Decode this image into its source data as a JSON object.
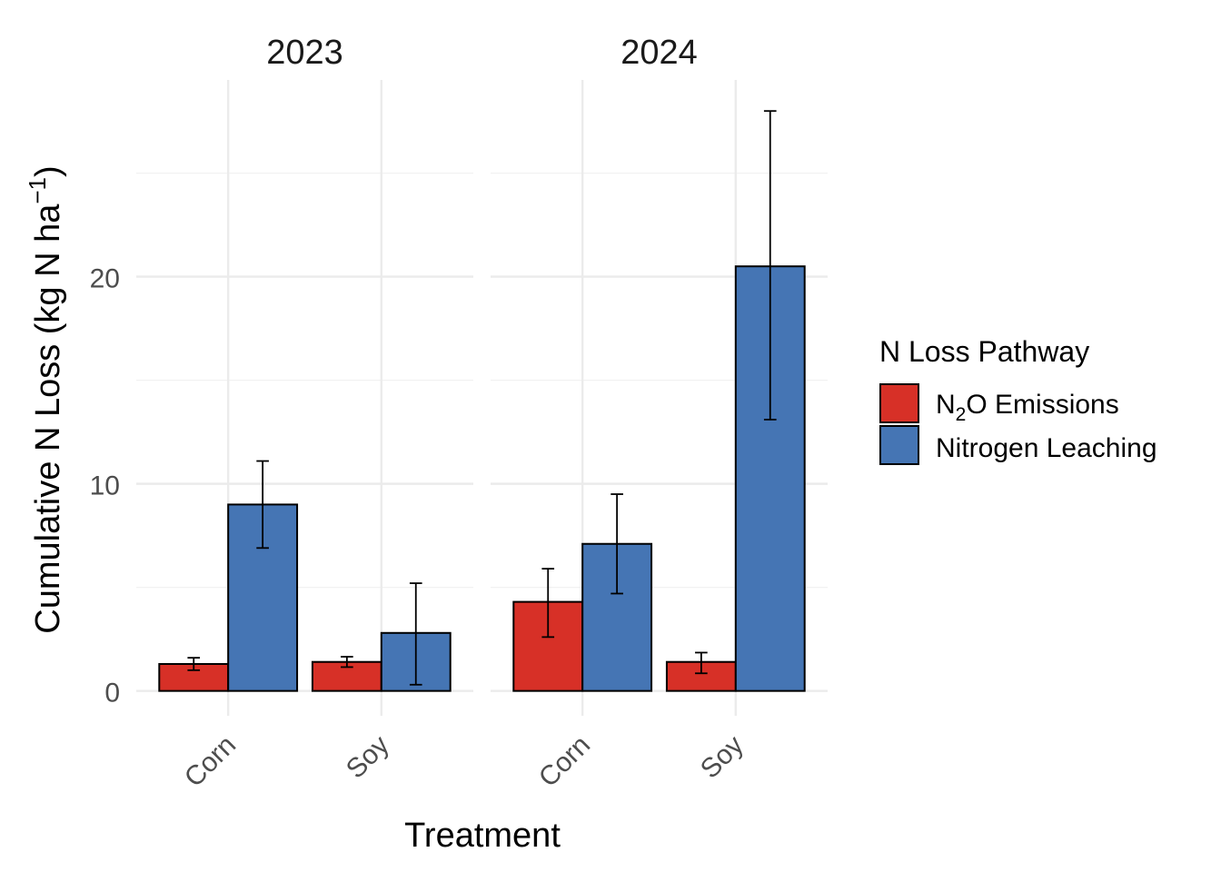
{
  "chart_data": {
    "type": "bar",
    "facets": [
      {
        "title": "2023",
        "categories": [
          "Corn",
          "Soy"
        ],
        "series": [
          {
            "name": "N2O Emissions",
            "values": [
              1.3,
              1.4
            ],
            "error_low": [
              1.0,
              1.15
            ],
            "error_high": [
              1.6,
              1.65
            ]
          },
          {
            "name": "Nitrogen Leaching",
            "values": [
              9.0,
              2.8
            ],
            "error_low": [
              6.9,
              0.3
            ],
            "error_high": [
              11.1,
              5.2
            ]
          }
        ]
      },
      {
        "title": "2024",
        "categories": [
          "Corn",
          "Soy"
        ],
        "series": [
          {
            "name": "N2O Emissions",
            "values": [
              4.3,
              1.4
            ],
            "error_low": [
              2.6,
              0.85
            ],
            "error_high": [
              5.9,
              1.85
            ]
          },
          {
            "name": "Nitrogen Leaching",
            "values": [
              7.1,
              20.5
            ],
            "error_low": [
              4.7,
              13.1
            ],
            "error_high": [
              9.5,
              28.0
            ]
          }
        ]
      }
    ],
    "xlabel": "Treatment",
    "ylabel": "Cumulative N Loss (kg N ha",
    "ylabel_sup": "−1",
    "ylabel_close": ")",
    "ylim": [
      -1.2,
      29.5
    ],
    "yticks": [
      0,
      10,
      20
    ],
    "grid": true,
    "legend": {
      "title": "N Loss Pathway",
      "placement": "right",
      "entries": [
        {
          "name": "N2O Emissions",
          "label_main": "N",
          "label_sub": "2",
          "label_rest": "O Emissions",
          "color": "#d73027"
        },
        {
          "name": "Nitrogen Leaching",
          "label": "Nitrogen Leaching",
          "color": "#4575b4"
        }
      ]
    },
    "colors": {
      "N2O Emissions": "#d73027",
      "Nitrogen Leaching": "#4575b4"
    }
  }
}
